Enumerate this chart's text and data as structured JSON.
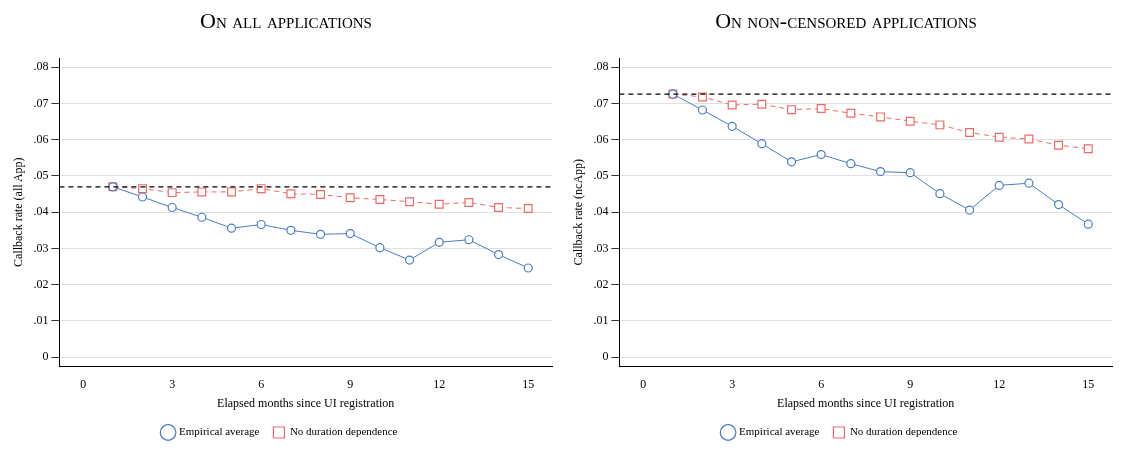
{
  "chart_data": [
    {
      "type": "line",
      "title": "On all applications",
      "xlabel": "Elapsed months since UI registration",
      "ylabel": "Callback rate (all App)",
      "x": [
        1,
        2,
        3,
        4,
        5,
        6,
        7,
        8,
        9,
        10,
        11,
        12,
        13,
        14,
        15
      ],
      "xlim": [
        -0.8,
        15.8
      ],
      "xticks": [
        0,
        3,
        6,
        9,
        12,
        15
      ],
      "ylim": [
        -0.0025,
        0.0825
      ],
      "yticks": [
        {
          "value": 0,
          "label": "0"
        },
        {
          "value": 0.01,
          "label": ".01"
        },
        {
          "value": 0.02,
          "label": ".02"
        },
        {
          "value": 0.03,
          "label": ".03"
        },
        {
          "value": 0.04,
          "label": ".04"
        },
        {
          "value": 0.05,
          "label": ".05"
        },
        {
          "value": 0.06,
          "label": ".06"
        },
        {
          "value": 0.07,
          "label": ".07"
        },
        {
          "value": 0.08,
          "label": ".08"
        }
      ],
      "grid": "y",
      "legend": "bottom",
      "series": [
        {
          "name": "Empirical average",
          "color": "#4a7cc4",
          "marker": "circle",
          "line_style": "solid",
          "values": [
            0.047,
            0.0442,
            0.0413,
            0.0386,
            0.0356,
            0.0366,
            0.035,
            0.0339,
            0.0341,
            0.0302,
            0.0268,
            0.0317,
            0.0324,
            0.0283,
            0.0246
          ]
        },
        {
          "name": "No duration dependence",
          "color": "#f06a6a",
          "marker": "square",
          "line_style": "dashed",
          "values": [
            0.047,
            0.0465,
            0.0454,
            0.0456,
            0.0456,
            0.0465,
            0.0451,
            0.0449,
            0.044,
            0.0435,
            0.0429,
            0.0422,
            0.0427,
            0.0413,
            0.041
          ]
        }
      ],
      "ref_lines": [
        {
          "axis": "y",
          "value": 0.047,
          "color": "#000000",
          "line_style": "dashed"
        }
      ]
    },
    {
      "type": "line",
      "title": "On non-censored applications",
      "xlabel": "Elapsed months since UI registration",
      "ylabel": "Callback rate (ncApp)",
      "x": [
        1,
        2,
        3,
        4,
        5,
        6,
        7,
        8,
        9,
        10,
        11,
        12,
        13,
        14,
        15
      ],
      "xlim": [
        -0.8,
        15.8
      ],
      "xticks": [
        0,
        3,
        6,
        9,
        12,
        15
      ],
      "ylim": [
        -0.0025,
        0.0825
      ],
      "yticks": [
        {
          "value": 0,
          "label": "0"
        },
        {
          "value": 0.01,
          "label": ".01"
        },
        {
          "value": 0.02,
          "label": ".02"
        },
        {
          "value": 0.03,
          "label": ".03"
        },
        {
          "value": 0.04,
          "label": ".04"
        },
        {
          "value": 0.05,
          "label": ".05"
        },
        {
          "value": 0.06,
          "label": ".06"
        },
        {
          "value": 0.07,
          "label": ".07"
        },
        {
          "value": 0.08,
          "label": ".08"
        }
      ],
      "grid": "y",
      "legend": "bottom",
      "series": [
        {
          "name": "Empirical average",
          "color": "#4a7cc4",
          "marker": "circle",
          "line_style": "solid",
          "values": [
            0.0726,
            0.0682,
            0.0637,
            0.0589,
            0.0539,
            0.0559,
            0.0534,
            0.0512,
            0.0509,
            0.0451,
            0.0406,
            0.0474,
            0.048,
            0.0421,
            0.0367
          ]
        },
        {
          "name": "No duration dependence",
          "color": "#f06a6a",
          "marker": "square",
          "line_style": "dashed",
          "values": [
            0.0726,
            0.0718,
            0.0696,
            0.0698,
            0.0683,
            0.0686,
            0.0673,
            0.0663,
            0.0651,
            0.0641,
            0.062,
            0.0607,
            0.0602,
            0.0585,
            0.0575
          ]
        }
      ],
      "ref_lines": [
        {
          "axis": "y",
          "value": 0.0726,
          "color": "#000000",
          "line_style": "dashed"
        }
      ]
    }
  ]
}
